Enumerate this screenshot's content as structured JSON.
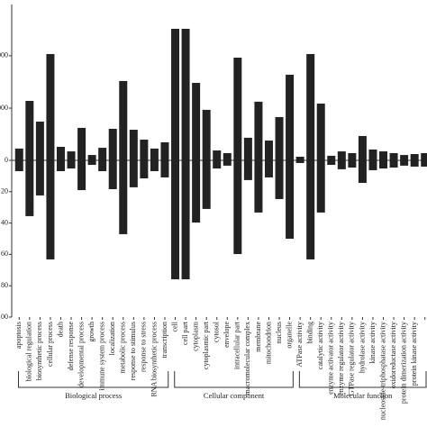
{
  "chart_data": {
    "type": "bar",
    "groups": [
      {
        "label": "Biological process",
        "categories": [
          "apoptosis",
          "biological regulation",
          "biosynthetic process",
          "cellular process",
          "death",
          "defense response",
          "developmental process",
          "growth",
          "immune system process",
          "localization",
          "metabolic process",
          "response to stimulus",
          "response to stress",
          "RNA biosynthetic process",
          "transcription"
        ]
      },
      {
        "label": "Cellular component",
        "categories": [
          "cell",
          "cell part",
          "cytoplasm",
          "cytoplasmic part",
          "cytosol",
          "envelope",
          "intracellular part",
          "macromolecular complex",
          "membrane",
          "mitochondrion",
          "nucleus",
          "organelle"
        ]
      },
      {
        "label": "Molecular function",
        "categories": [
          "ATPase activity",
          "binding",
          "catalytic activity",
          "enzyme activator activity",
          "enzyme regulator activity",
          "GTPase regulator activity",
          "hydrolase activity",
          "kinase activity",
          "nucleoside-triphosphatase activity",
          "oxidoreductase activity",
          "protein dimerization activity",
          "protein kinase activity",
          null
        ]
      }
    ],
    "series": [
      {
        "color": "#222222",
        "values": [
          7.5,
          37.9,
          24.7,
          67.8,
          8.6,
          5.7,
          20.7,
          3.4,
          8.0,
          20.1,
          50.6,
          19.5,
          13.2,
          7.5,
          11.5,
          83.9,
          83.9,
          49.4,
          32.2,
          6.3,
          4.6,
          65.5,
          14.4,
          37.4,
          12.6,
          27.6,
          54.6,
          2.3,
          67.8,
          36.2,
          2.9,
          5.7,
          4.6,
          15.5,
          6.9,
          5.7,
          4.6,
          3.4,
          4.0,
          4.6
        ]
      },
      {
        "color": "#222222",
        "values": [
          -6.9,
          -35.6,
          -22.4,
          -63.2,
          -6.9,
          -5.2,
          -19.0,
          -2.9,
          -6.9,
          -18.4,
          -47.1,
          -17.2,
          -11.5,
          -6.9,
          -10.9,
          -75.9,
          -75.9,
          -39.7,
          -31.0,
          -5.2,
          -3.4,
          -59.8,
          -12.6,
          -33.3,
          -10.9,
          -24.7,
          -50.0,
          -1.7,
          -63.2,
          -33.3,
          -2.9,
          -5.7,
          -4.6,
          -14.4,
          -6.3,
          -5.2,
          -4.6,
          -3.4,
          -4.0,
          -4.0
        ]
      }
    ],
    "ylim": [
      -100,
      99.4
    ],
    "yticks": [
      {
        "value": 66.7,
        "label": "000"
      },
      {
        "value": 33.3,
        "label": "000"
      },
      0,
      {
        "value": -20,
        "label": "20"
      },
      {
        "value": -40,
        "label": "40"
      },
      {
        "value": -60,
        "label": "60"
      },
      {
        "value": -80,
        "label": "80"
      },
      {
        "value": -100,
        "label": "100"
      }
    ]
  }
}
